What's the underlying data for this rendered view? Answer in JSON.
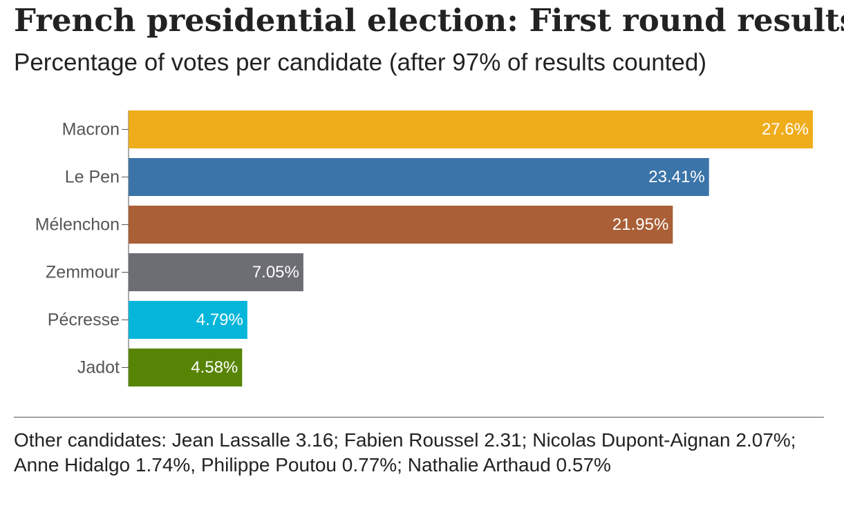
{
  "title": "French presidential election: First round results",
  "subtitle": "Percentage of votes per candidate (after 97% of results counted)",
  "footnote": "Other candidates: Jean Lassalle 3.16; Fabien Roussel 2.31; Nicolas Dupont-Aignan 2.07%; Anne Hidalgo 1.74%, Philippe Poutou 0.77%; Nathalie Arthaud 0.57%",
  "chart_data": {
    "type": "bar",
    "orientation": "horizontal",
    "categories": [
      "Macron",
      "Le Pen",
      "Mélenchon",
      "Zemmour",
      "Pécresse",
      "Jadot"
    ],
    "values": [
      27.6,
      23.41,
      21.95,
      7.05,
      4.79,
      4.58
    ],
    "value_labels": [
      "27.6%",
      "23.41%",
      "21.95%",
      "7.05%",
      "4.79%",
      "4.58%"
    ],
    "colors": [
      "#efac1b",
      "#3b74a8",
      "#aa5f36",
      "#6d6d74",
      "#06b6da",
      "#578404"
    ],
    "title": "French presidential election: First round results",
    "subtitle": "Percentage of votes per candidate (after 97% of results counted)",
    "xlabel": "",
    "ylabel": "",
    "xlim": [
      0,
      27.6
    ],
    "grid": false,
    "legend": "none",
    "value_label_color": "#ffffff",
    "axis_color": "#555555"
  }
}
